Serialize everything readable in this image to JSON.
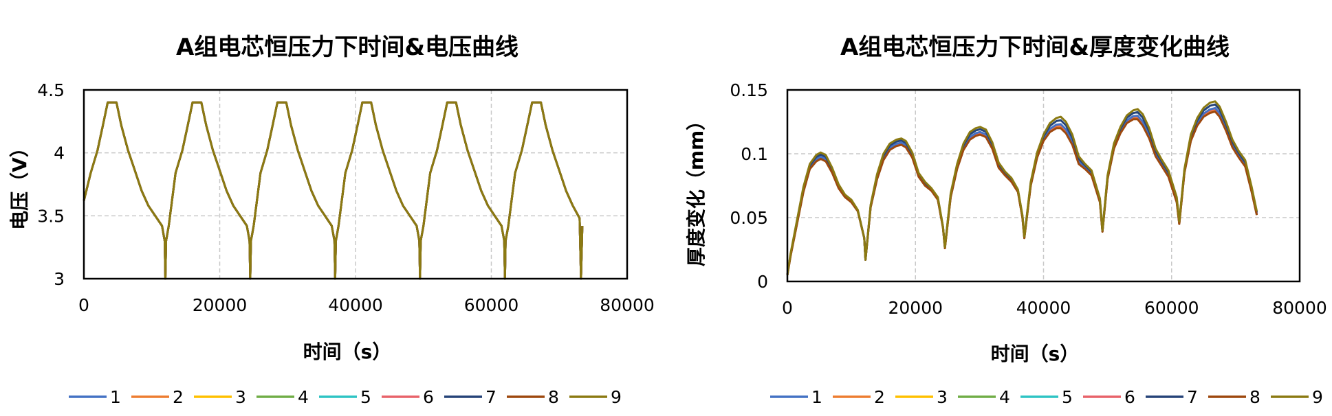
{
  "colors": {
    "1": "#4472C4",
    "2": "#ED7D31",
    "3": "#FFC000",
    "4": "#70AD47",
    "5": "#2EC4C4",
    "6": "#E8636A",
    "7": "#264478",
    "8": "#9E480E",
    "9": "#8B7A12"
  },
  "chart_data": [
    {
      "type": "line",
      "title": "A组电芯恒压力下时间&电压曲线",
      "xlabel": "时间（s）",
      "ylabel": "电压（V）",
      "xlim": [
        0,
        80000
      ],
      "ylim": [
        3,
        4.5
      ],
      "x_ticks": [
        "0",
        "20000",
        "40000",
        "60000",
        "80000"
      ],
      "y_ticks": [
        "3",
        "3.5",
        "4",
        "4.5"
      ],
      "grid": true,
      "legend": "bottom",
      "series_names": [
        "1",
        "2",
        "3",
        "4",
        "5",
        "6",
        "7",
        "8",
        "9"
      ],
      "x": [
        0,
        1000,
        2000,
        2800,
        3500,
        4800,
        5500,
        6500,
        7500,
        8500,
        9500,
        10500,
        11500,
        11900,
        12000,
        12100,
        12500,
        13500,
        14500,
        15300,
        16000,
        17300,
        18000,
        19000,
        20000,
        21000,
        22000,
        23000,
        24000,
        24400,
        24500,
        24600,
        25000,
        26000,
        27000,
        27800,
        28500,
        29800,
        30500,
        31500,
        32500,
        33500,
        34500,
        35500,
        36500,
        36900,
        37000,
        37100,
        37500,
        38500,
        39500,
        40300,
        41000,
        42300,
        43000,
        44000,
        45000,
        46000,
        47000,
        48000,
        49000,
        49400,
        49500,
        49600,
        50000,
        51000,
        52000,
        52800,
        53500,
        54800,
        55500,
        56500,
        57500,
        58500,
        59500,
        60500,
        61500,
        61900,
        62000,
        62100,
        62500,
        63500,
        64500,
        65300,
        66000,
        67300,
        68000,
        69000,
        70000,
        71000,
        72000,
        73000,
        73200,
        73400
      ],
      "series": [
        {
          "name": "1",
          "values": [
            3.62,
            3.84,
            4.02,
            4.22,
            4.4,
            4.4,
            4.22,
            4.02,
            3.86,
            3.7,
            3.58,
            3.5,
            3.42,
            3.3,
            3.0,
            3.3,
            3.42,
            3.84,
            4.02,
            4.22,
            4.4,
            4.4,
            4.22,
            4.02,
            3.86,
            3.7,
            3.58,
            3.5,
            3.42,
            3.3,
            3.0,
            3.3,
            3.42,
            3.84,
            4.02,
            4.22,
            4.4,
            4.4,
            4.22,
            4.02,
            3.86,
            3.7,
            3.58,
            3.5,
            3.42,
            3.3,
            3.0,
            3.3,
            3.42,
            3.84,
            4.02,
            4.22,
            4.4,
            4.4,
            4.22,
            4.02,
            3.86,
            3.7,
            3.58,
            3.5,
            3.42,
            3.3,
            3.0,
            3.3,
            3.42,
            3.84,
            4.02,
            4.22,
            4.4,
            4.4,
            4.22,
            4.02,
            3.86,
            3.7,
            3.58,
            3.5,
            3.42,
            3.3,
            3.0,
            3.3,
            3.42,
            3.84,
            4.02,
            4.22,
            4.4,
            4.4,
            4.22,
            4.02,
            3.86,
            3.7,
            3.58,
            3.48,
            3.0,
            3.42
          ]
        },
        {
          "name": "9",
          "values": [
            3.62,
            3.84,
            4.02,
            4.22,
            4.4,
            4.4,
            4.22,
            4.02,
            3.86,
            3.7,
            3.58,
            3.5,
            3.42,
            3.3,
            3.0,
            3.3,
            3.42,
            3.84,
            4.02,
            4.22,
            4.4,
            4.4,
            4.22,
            4.02,
            3.86,
            3.7,
            3.58,
            3.5,
            3.42,
            3.3,
            3.0,
            3.3,
            3.42,
            3.84,
            4.02,
            4.22,
            4.4,
            4.4,
            4.22,
            4.02,
            3.86,
            3.7,
            3.58,
            3.5,
            3.42,
            3.3,
            3.0,
            3.3,
            3.42,
            3.84,
            4.02,
            4.22,
            4.4,
            4.4,
            4.22,
            4.02,
            3.86,
            3.7,
            3.58,
            3.5,
            3.42,
            3.3,
            3.0,
            3.3,
            3.42,
            3.84,
            4.02,
            4.22,
            4.4,
            4.4,
            4.22,
            4.02,
            3.86,
            3.7,
            3.58,
            3.5,
            3.42,
            3.3,
            3.0,
            3.3,
            3.42,
            3.84,
            4.02,
            4.22,
            4.4,
            4.4,
            4.22,
            4.02,
            3.86,
            3.7,
            3.58,
            3.48,
            3.0,
            3.42
          ]
        }
      ]
    },
    {
      "type": "line",
      "title": "A组电芯恒压力下时间&厚度变化曲线",
      "xlabel": "时间（s）",
      "ylabel": "厚度变化（mm）",
      "xlim": [
        0,
        80000
      ],
      "ylim": [
        0,
        0.15
      ],
      "x_ticks": [
        "0",
        "20000",
        "40000",
        "60000",
        "80000"
      ],
      "y_ticks": [
        "0",
        "0.05",
        "0.1",
        "0.15"
      ],
      "grid": true,
      "legend": "bottom",
      "series_names": [
        "1",
        "2",
        "3",
        "4",
        "5",
        "6",
        "7",
        "8",
        "9"
      ],
      "x": [
        0,
        500,
        1500,
        2500,
        3500,
        4500,
        5200,
        6000,
        7000,
        8000,
        9000,
        10000,
        11000,
        12000,
        12200,
        13000,
        14000,
        15000,
        16000,
        17000,
        17800,
        18500,
        19500,
        20500,
        21500,
        22500,
        23500,
        24300,
        24600,
        25500,
        26500,
        27500,
        28500,
        29400,
        30100,
        31000,
        32000,
        33000,
        34000,
        35000,
        36000,
        36700,
        37000,
        38000,
        39000,
        40000,
        41000,
        42000,
        42700,
        43500,
        44500,
        45500,
        46500,
        47500,
        48800,
        49200,
        50000,
        51000,
        52000,
        53000,
        54000,
        54700,
        55500,
        56500,
        57500,
        58500,
        59500,
        60800,
        61200,
        62000,
        63000,
        64000,
        65000,
        66000,
        66800,
        67500,
        68500,
        69500,
        70500,
        71500,
        72500,
        73300
      ],
      "series": [
        {
          "name": "1",
          "values": [
            0.005,
            0.02,
            0.045,
            0.07,
            0.088,
            0.094,
            0.096,
            0.094,
            0.085,
            0.073,
            0.066,
            0.062,
            0.055,
            0.034,
            0.017,
            0.058,
            0.08,
            0.095,
            0.103,
            0.106,
            0.107,
            0.105,
            0.097,
            0.082,
            0.075,
            0.071,
            0.064,
            0.042,
            0.026,
            0.066,
            0.088,
            0.103,
            0.111,
            0.114,
            0.115,
            0.113,
            0.104,
            0.089,
            0.083,
            0.078,
            0.07,
            0.05,
            0.034,
            0.075,
            0.097,
            0.11,
            0.117,
            0.12,
            0.12,
            0.116,
            0.107,
            0.092,
            0.088,
            0.083,
            0.062,
            0.039,
            0.08,
            0.104,
            0.116,
            0.124,
            0.127,
            0.127,
            0.122,
            0.112,
            0.098,
            0.09,
            0.082,
            0.062,
            0.045,
            0.085,
            0.11,
            0.122,
            0.129,
            0.132,
            0.133,
            0.129,
            0.118,
            0.105,
            0.097,
            0.09,
            0.07,
            0.052
          ]
        },
        {
          "name": "9",
          "values": [
            0.005,
            0.022,
            0.048,
            0.074,
            0.092,
            0.099,
            0.101,
            0.099,
            0.089,
            0.076,
            0.068,
            0.064,
            0.056,
            0.034,
            0.017,
            0.06,
            0.084,
            0.1,
            0.108,
            0.111,
            0.112,
            0.11,
            0.101,
            0.085,
            0.078,
            0.073,
            0.066,
            0.043,
            0.027,
            0.069,
            0.092,
            0.108,
            0.117,
            0.12,
            0.121,
            0.119,
            0.109,
            0.093,
            0.086,
            0.081,
            0.072,
            0.052,
            0.035,
            0.078,
            0.101,
            0.115,
            0.124,
            0.128,
            0.129,
            0.125,
            0.115,
            0.098,
            0.092,
            0.087,
            0.065,
            0.04,
            0.083,
            0.108,
            0.121,
            0.13,
            0.134,
            0.135,
            0.131,
            0.12,
            0.104,
            0.095,
            0.087,
            0.066,
            0.047,
            0.088,
            0.115,
            0.128,
            0.136,
            0.14,
            0.141,
            0.137,
            0.125,
            0.111,
            0.102,
            0.095,
            0.074,
            0.055
          ]
        }
      ]
    }
  ]
}
